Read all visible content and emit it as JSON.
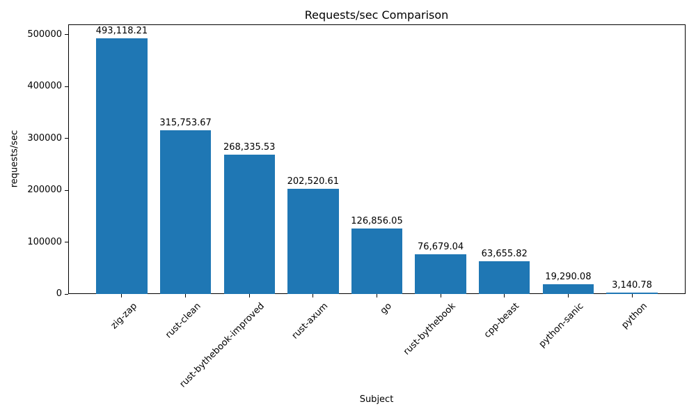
{
  "page": {
    "background": "#ffffff",
    "text_color": "#000000"
  },
  "chart_data": {
    "type": "bar",
    "title": "Requests/sec Comparison",
    "xlabel": "Subject",
    "ylabel": "requests/sec",
    "categories": [
      "zig-zap",
      "rust-clean",
      "rust-bythebook-improved",
      "rust-axum",
      "go",
      "rust-bythebook",
      "cpp-beast",
      "python-sanic",
      "python"
    ],
    "values": [
      493118.21,
      315753.67,
      268335.53,
      202520.61,
      126856.05,
      76679.04,
      63655.82,
      19290.08,
      3140.78
    ],
    "bar_labels": [
      "493,118.21",
      "315,753.67",
      "268,335.53",
      "202,520.61",
      "126,856.05",
      "76,679.04",
      "63,655.82",
      "19,290.08",
      "3,140.78"
    ],
    "bar_color": "#1f77b4",
    "ylim": [
      0,
      520000
    ],
    "yticks": [
      0,
      100000,
      200000,
      300000,
      400000,
      500000
    ],
    "ytick_labels": [
      "0",
      "100000",
      "200000",
      "300000",
      "400000",
      "500000"
    ],
    "grid": false,
    "legend_position": "none"
  }
}
